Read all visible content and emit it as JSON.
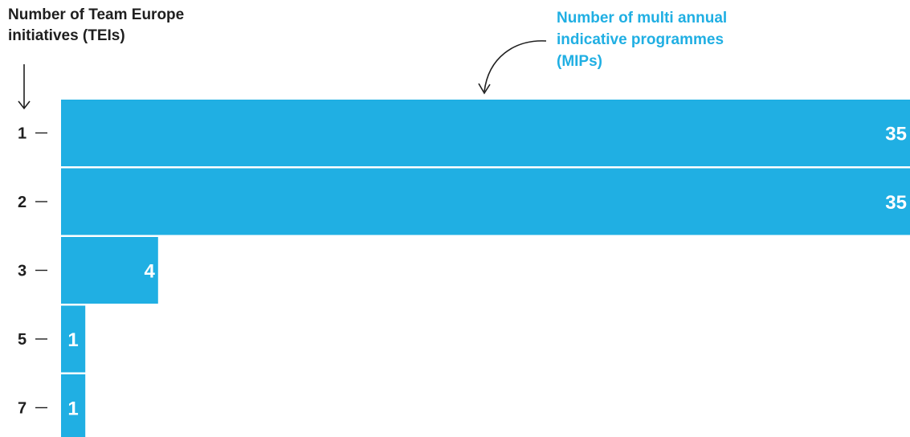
{
  "chart_data": {
    "type": "bar",
    "orientation": "horizontal",
    "ylabel": [
      "Number of Team Europe",
      "initiatives (TEIs)"
    ],
    "xlabel": [
      "Number of multi annual",
      "indicative programmes",
      "(MIPs)"
    ],
    "categories": [
      "1",
      "2",
      "3",
      "5",
      "7"
    ],
    "values": [
      35,
      35,
      4,
      1,
      1
    ],
    "value_labels": [
      "35",
      "35",
      "4",
      "1",
      "1"
    ],
    "xlim": [
      0,
      35
    ],
    "grid": false,
    "legend": "none",
    "colors": {
      "bar": "#20afe3",
      "xlabel": "#20afe3",
      "ylabel": "#1f1f1f",
      "value_label": "#ffffff",
      "tick": "#1f1f1f"
    }
  }
}
